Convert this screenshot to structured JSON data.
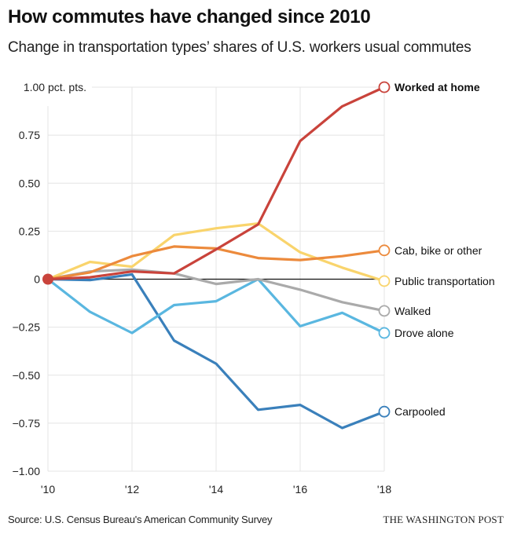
{
  "header": {
    "title": "How commutes have changed since 2010",
    "subtitle": "Change in transportation types’ shares of U.S. workers usual commutes"
  },
  "footer": {
    "source": "Source: U.S. Census Bureau's American Community Survey",
    "brand": "THE WASHINGTON POST"
  },
  "chart_data": {
    "type": "line",
    "title": "How commutes have changed since 2010",
    "subtitle": "Change in transportation types’ shares of U.S. workers usual commutes",
    "xlabel": "",
    "ylabel": "pct. pts.",
    "x": [
      2010,
      2011,
      2012,
      2013,
      2014,
      2015,
      2016,
      2017,
      2018
    ],
    "xticks": [
      2010,
      2012,
      2014,
      2016,
      2018
    ],
    "xtick_labels": [
      "'10",
      "'12",
      "'14",
      "'16",
      "'18"
    ],
    "ylim": [
      -1.0,
      1.0
    ],
    "yticks": [
      1.0,
      0.75,
      0.5,
      0.25,
      0,
      -0.25,
      -0.5,
      -0.75,
      -1.0
    ],
    "ytick_labels": [
      "1.00 pct. pts.",
      "0.75",
      "0.50",
      "0.25",
      "0",
      "−0.25",
      "−0.50",
      "−0.75",
      "−1.00"
    ],
    "grid": true,
    "legend": "inline labels at right end of each line",
    "series": [
      {
        "name": "Worked at home",
        "color": "#c9433b",
        "bold": true,
        "values": [
          0,
          0.01,
          0.04,
          0.03,
          0.155,
          0.285,
          0.72,
          0.9,
          1.0
        ]
      },
      {
        "name": "Cab, bike or other",
        "color": "#ec8a3c",
        "bold": false,
        "values": [
          0,
          0.035,
          0.12,
          0.17,
          0.16,
          0.11,
          0.1,
          0.12,
          0.15
        ]
      },
      {
        "name": "Public transportation",
        "color": "#f9d46c",
        "bold": false,
        "values": [
          0,
          0.09,
          0.065,
          0.23,
          0.265,
          0.29,
          0.14,
          0.06,
          -0.01
        ]
      },
      {
        "name": "Walked",
        "color": "#aaaaaa",
        "bold": false,
        "values": [
          0,
          0.04,
          0.05,
          0.03,
          -0.025,
          0.0,
          -0.055,
          -0.12,
          -0.165
        ]
      },
      {
        "name": "Drove alone",
        "color": "#5ab7e0",
        "bold": false,
        "values": [
          0,
          -0.17,
          -0.28,
          -0.135,
          -0.115,
          0.0,
          -0.245,
          -0.175,
          -0.28
        ]
      },
      {
        "name": "Carpooled",
        "color": "#3a80bb",
        "bold": false,
        "values": [
          0,
          -0.005,
          0.025,
          -0.32,
          -0.44,
          -0.68,
          -0.655,
          -0.775,
          -0.69
        ]
      }
    ],
    "label_offsets_note": "labels placed beside end points"
  }
}
